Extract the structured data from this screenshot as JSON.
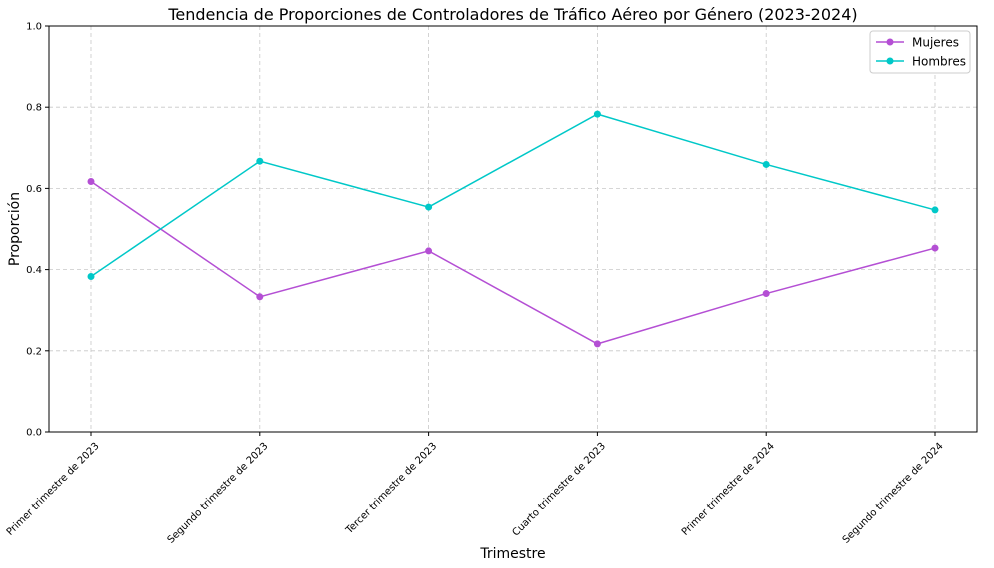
{
  "chart_data": {
    "type": "line",
    "title": "Tendencia de Proporciones de Controladores de Tráfico Aéreo por Género (2023-2024)",
    "xlabel": "Trimestre",
    "ylabel": "Proporción",
    "categories": [
      "Primer trimestre de 2023",
      "Segundo trimestre de 2023",
      "Tercer trimestre de 2023",
      "Cuarto trimestre de 2023",
      "Primer trimestre de 2024",
      "Segundo trimestre de 2024"
    ],
    "series": [
      {
        "name": "Mujeres",
        "color": "#b44fd4",
        "values": [
          0.617,
          0.333,
          0.446,
          0.217,
          0.341,
          0.453
        ]
      },
      {
        "name": "Hombres",
        "color": "#00c8c8",
        "values": [
          0.383,
          0.667,
          0.554,
          0.783,
          0.659,
          0.547
        ]
      }
    ],
    "ylim": [
      0,
      1
    ],
    "yticks": [
      "0.0",
      "0.2",
      "0.4",
      "0.6",
      "0.8",
      "1.0"
    ],
    "grid": true,
    "legend_position": "top-right"
  }
}
